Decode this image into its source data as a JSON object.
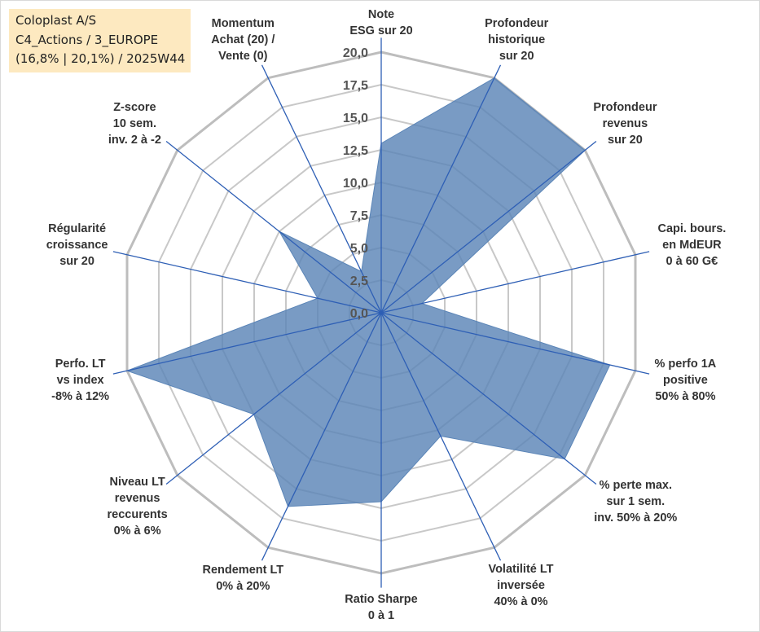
{
  "info_box": {
    "line1": "Coloplast A/S",
    "line2": "C4_Actions / 3_EUROPE",
    "line3": "(16,8% | 20,1%) / 2025W44"
  },
  "colors": {
    "fill": "#5b85b7",
    "spoke": "#2e5fb5",
    "grid": "#c8c8c8",
    "grid_outer": "#bdbdbd"
  },
  "chart_data": {
    "type": "radar",
    "max": 20,
    "ticks": [
      "0,0",
      "2,5",
      "5,0",
      "7,5",
      "10,0",
      "12,5",
      "15,0",
      "17,5",
      "20,0"
    ],
    "axes": [
      {
        "label": [
          "Note",
          "ESG sur 20"
        ],
        "value": 13
      },
      {
        "label": [
          "Profondeur",
          "historique",
          "sur 20"
        ],
        "value": 20
      },
      {
        "label": [
          "Profondeur",
          "revenus",
          "sur 20"
        ],
        "value": 20
      },
      {
        "label": [
          "Capi. bours.",
          "en MdEUR",
          "0 à 60 G€"
        ],
        "value": 3.2
      },
      {
        "label": [
          "% perfo 1A",
          "positive",
          "50% à 80%"
        ],
        "value": 18
      },
      {
        "label": [
          "% perte max.",
          "sur 1 sem.",
          "inv. 50% à 20%"
        ],
        "value": 18
      },
      {
        "label": [
          "Volatilité LT",
          "inversée",
          "40% à 0%"
        ],
        "value": 10.5
      },
      {
        "label": [
          "Ratio Sharpe",
          "0 à 1"
        ],
        "value": 14.5
      },
      {
        "label": [
          "Rendement LT",
          "0% à 20%"
        ],
        "value": 16.5
      },
      {
        "label": [
          "Niveau LT",
          "revenus",
          "reccurents",
          "0% à 6%"
        ],
        "value": 12.5
      },
      {
        "label": [
          "Perfo. LT",
          "vs index",
          "-8% à 12%"
        ],
        "value": 20
      },
      {
        "label": [
          "Régularité",
          "croissance",
          "sur 20"
        ],
        "value": 5
      },
      {
        "label": [
          "Z-score",
          "10 sem.",
          "inv. 2 à -2"
        ],
        "value": 10
      },
      {
        "label": [
          "Momentum",
          "Achat (20) /",
          "Vente (0)"
        ],
        "value": 3.5
      }
    ]
  }
}
